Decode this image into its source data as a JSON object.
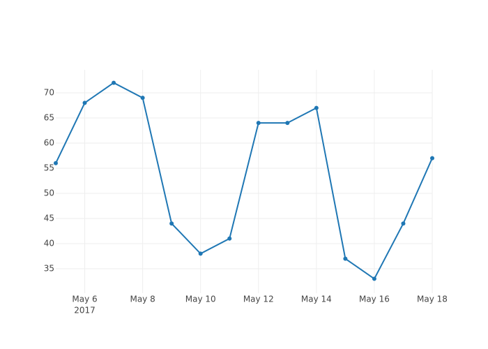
{
  "chart_data": {
    "type": "line",
    "x": [
      "2017-05-05",
      "2017-05-06",
      "2017-05-07",
      "2017-05-08",
      "2017-05-09",
      "2017-05-10",
      "2017-05-11",
      "2017-05-12",
      "2017-05-13",
      "2017-05-14",
      "2017-05-15",
      "2017-05-16",
      "2017-05-17",
      "2017-05-18"
    ],
    "series": [
      {
        "color": "#1f77b4",
        "values": [
          56,
          68,
          72,
          69,
          44,
          38,
          41,
          64,
          64,
          67,
          37,
          33,
          44,
          57
        ]
      }
    ],
    "xlim": [
      "2017-05-05",
      "2017-05-18"
    ],
    "xticks": [
      {
        "value": "2017-05-06",
        "label": "May 6"
      },
      {
        "value": "2017-05-08",
        "label": "May 8"
      },
      {
        "value": "2017-05-10",
        "label": "May 10"
      },
      {
        "value": "2017-05-12",
        "label": "May 12"
      },
      {
        "value": "2017-05-14",
        "label": "May 14"
      },
      {
        "value": "2017-05-16",
        "label": "May 16"
      },
      {
        "value": "2017-05-18",
        "label": "May 18"
      }
    ],
    "x_year_label": "2017",
    "ylim": [
      30.14,
      74.58
    ],
    "yticks": [
      35,
      40,
      45,
      50,
      55,
      60,
      65,
      70
    ],
    "grid": true
  }
}
